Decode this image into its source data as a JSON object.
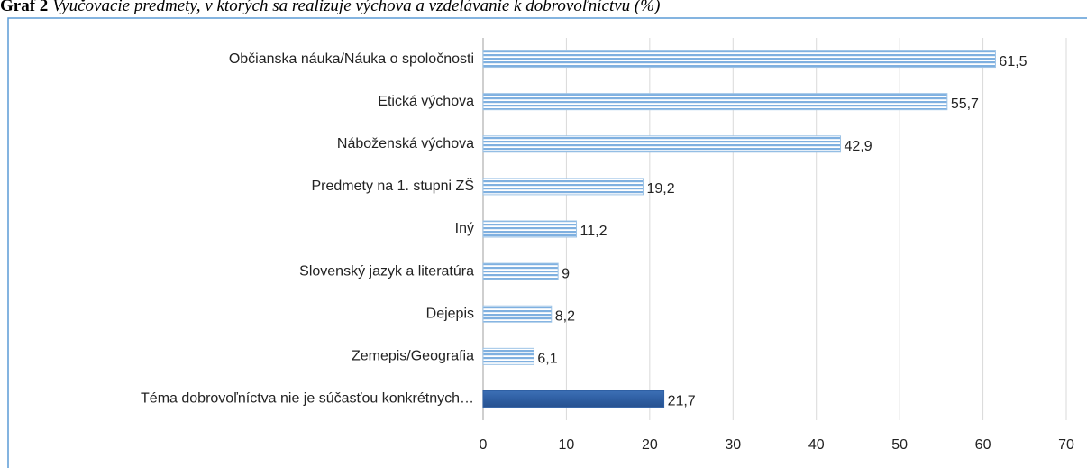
{
  "chart_data": {
    "type": "hbar",
    "title_prefix": "Graf 2",
    "title": "Vyučovacie predmety, v ktorých sa realizuje výchova a vzdelávanie k dobrovoľníctvu (%)",
    "categories": [
      "Občianska náuka/Náuka o spoločnosti",
      "Etická výchova",
      "Náboženská výchova",
      "Predmety na 1. stupni ZŠ",
      "Iný",
      "Slovenský jazyk a literatúra",
      "Dejepis",
      "Zemepis/Geografia",
      "Téma dobrovoľníctva nie je súčasťou konkrétnych…"
    ],
    "values": [
      61.5,
      55.7,
      42.9,
      19.2,
      11.2,
      9,
      8.2,
      6.1,
      21.7
    ],
    "value_labels": [
      "61,5",
      "55,7",
      "42,9",
      "19,2",
      "11,2",
      "9",
      "8,2",
      "6,1",
      "21,7"
    ],
    "colors": [
      "#9dc3e6",
      "#9dc3e6",
      "#9dc3e6",
      "#9dc3e6",
      "#9dc3e6",
      "#9dc3e6",
      "#9dc3e6",
      "#9dc3e6",
      "#2f5fa3"
    ],
    "patterns": [
      "striped",
      "striped",
      "striped",
      "striped",
      "striped",
      "striped",
      "striped",
      "striped",
      "solid"
    ],
    "xlim": [
      0,
      70
    ],
    "xticks": [
      0,
      10,
      20,
      30,
      40,
      50,
      60,
      70
    ],
    "grid": true
  }
}
